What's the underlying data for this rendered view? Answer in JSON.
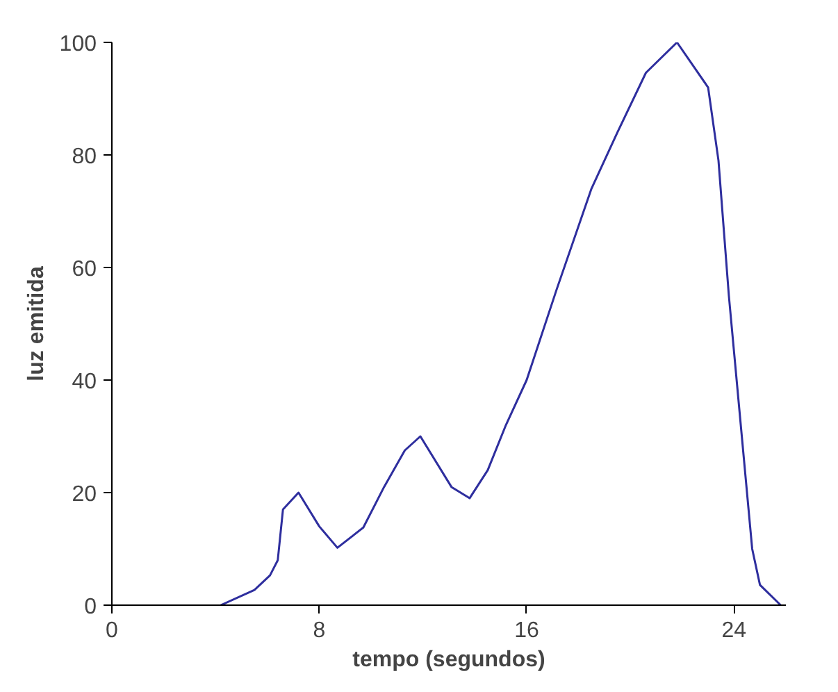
{
  "chart_data": {
    "type": "line",
    "xlabel": "tempo (segundos)",
    "ylabel": "luz emitida",
    "xlim": [
      0,
      26
    ],
    "xticks": [
      0,
      8,
      16,
      24
    ],
    "ylim": [
      0,
      100
    ],
    "yticks": [
      0,
      20,
      40,
      60,
      80,
      100
    ],
    "grid": false,
    "series": [
      {
        "color": "#2e2e9e",
        "x": [
          4.2,
          5.5,
          6.1,
          6.4,
          6.6,
          7.2,
          8.0,
          8.7,
          9.7,
          10.5,
          11.3,
          11.9,
          13.1,
          13.8,
          14.5,
          15.2,
          16,
          17.15,
          18.5,
          19.5,
          20.6,
          21.8,
          23,
          23.4,
          23.8,
          24.3,
          24.7,
          25,
          25.8
        ],
        "values": [
          0,
          2.7,
          5.3,
          8,
          17,
          20,
          14,
          10.2,
          13.8,
          21,
          27.5,
          30,
          21,
          19,
          24,
          32,
          40,
          56,
          74,
          84,
          94.6,
          100,
          92,
          79,
          55,
          30,
          10,
          3.6,
          0
        ]
      }
    ]
  }
}
